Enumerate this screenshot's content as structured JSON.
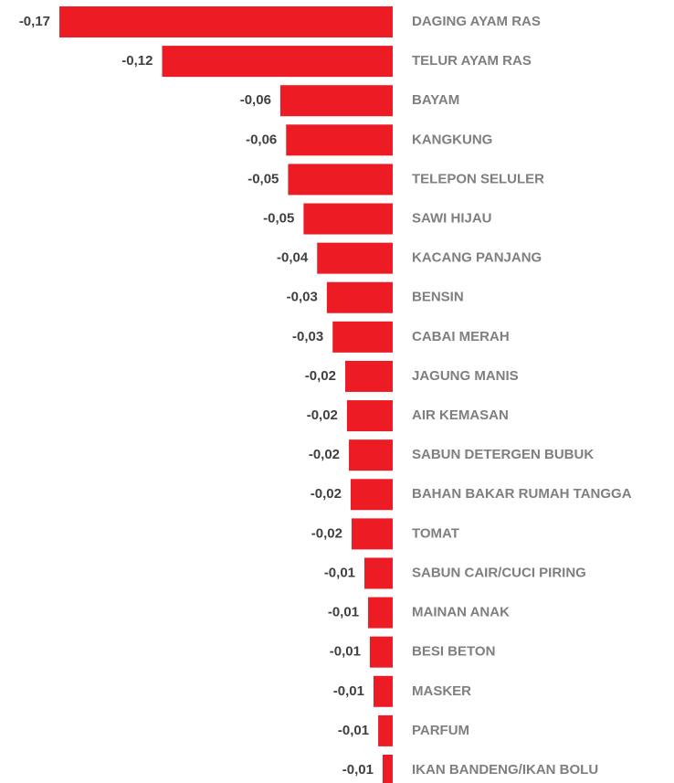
{
  "chart_data": {
    "type": "barh",
    "categories": [
      "DAGING AYAM RAS",
      "TELUR AYAM RAS",
      "BAYAM",
      "KANGKUNG",
      "TELEPON SELULER",
      "SAWI HIJAU",
      "KACANG PANJANG",
      "BENSIN",
      "CABAI MERAH",
      "JAGUNG MANIS",
      "AIR KEMASAN",
      "SABUN DETERGEN BUBUK",
      "BAHAN BAKAR RUMAH TANGGA",
      "TOMAT",
      "SABUN CAIR/CUCI PIRING",
      "MAINAN ANAK",
      "BESI BETON",
      "MASKER",
      "PARFUM",
      "IKAN BANDENG/IKAN BOLU"
    ],
    "values": [
      -0.172,
      -0.119,
      -0.058,
      -0.055,
      -0.054,
      -0.046,
      -0.039,
      -0.034,
      -0.031,
      -0.0245,
      -0.0236,
      -0.0226,
      -0.0217,
      -0.0212,
      -0.0146,
      -0.0127,
      -0.0118,
      -0.0099,
      -0.0075,
      -0.0052
    ],
    "value_labels": [
      "-0,17",
      "-0,12",
      "-0,06",
      "-0,06",
      "-0,05",
      "-0,05",
      "-0,04",
      "-0,03",
      "-0,03",
      "-0,02",
      "-0,02",
      "-0,02",
      "-0,02",
      "-0,02",
      "-0,01",
      "-0,01",
      "-0,01",
      "-0,01",
      "-0,01",
      "-0,01"
    ],
    "color": "#ed1c24",
    "xlim": [
      -0.18,
      0
    ]
  }
}
